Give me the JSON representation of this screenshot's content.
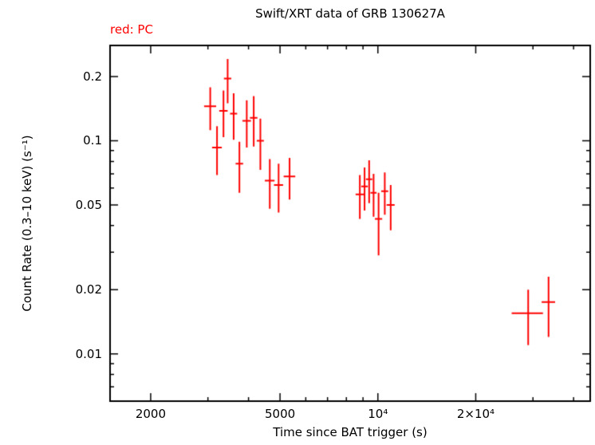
{
  "mode_label": "red: PC",
  "colors": {
    "data": "#ff0000",
    "axis": "#000000",
    "background": "#ffffff"
  },
  "chart_data": {
    "type": "scatter",
    "title": "Swift/XRT data of GRB 130627A",
    "xlabel": "Time since BAT trigger (s)",
    "ylabel": "Count Rate (0.3–10 keV) (s⁻¹)",
    "xscale": "log",
    "yscale": "log",
    "xlim": [
      1500,
      45000
    ],
    "ylim": [
      0.006,
      0.28
    ],
    "grid": false,
    "legend": "none",
    "x_major_ticks": [
      {
        "value": 2000,
        "label": "2000"
      },
      {
        "value": 5000,
        "label": "5000"
      },
      {
        "value": 10000,
        "label": "10⁴"
      },
      {
        "value": 20000,
        "label": "2×10⁴"
      }
    ],
    "x_minor_ticks": [
      3000,
      4000,
      6000,
      7000,
      8000,
      9000,
      30000,
      40000
    ],
    "y_major_ticks": [
      {
        "value": 0.2,
        "label": "0.2"
      },
      {
        "value": 0.1,
        "label": "0.1"
      },
      {
        "value": 0.05,
        "label": "0.05"
      },
      {
        "value": 0.02,
        "label": "0.02"
      },
      {
        "value": 0.01,
        "label": "0.01"
      }
    ],
    "y_minor_ticks": [
      0.007,
      0.008,
      0.009,
      0.03,
      0.04,
      0.06,
      0.07,
      0.08,
      0.09
    ],
    "series": [
      {
        "name": "PC",
        "instrument_mode": "PC",
        "color": "#ff0000",
        "marker": "cross-error-bars",
        "columns": [
          "t",
          "t_err",
          "rate",
          "rate_err"
        ],
        "points": [
          [
            3050,
            130,
            0.145,
            0.033
          ],
          [
            3200,
            110,
            0.093,
            0.024
          ],
          [
            3350,
            100,
            0.138,
            0.034
          ],
          [
            3450,
            90,
            0.196,
            0.046
          ],
          [
            3600,
            90,
            0.134,
            0.033
          ],
          [
            3750,
            100,
            0.078,
            0.021
          ],
          [
            3950,
            120,
            0.124,
            0.031
          ],
          [
            4150,
            110,
            0.128,
            0.034
          ],
          [
            4350,
            110,
            0.1,
            0.027
          ],
          [
            4650,
            160,
            0.065,
            0.017
          ],
          [
            4950,
            160,
            0.062,
            0.016
          ],
          [
            5350,
            220,
            0.068,
            0.015
          ],
          [
            8800,
            260,
            0.056,
            0.013
          ],
          [
            9100,
            210,
            0.061,
            0.014
          ],
          [
            9400,
            210,
            0.066,
            0.015
          ],
          [
            9700,
            210,
            0.057,
            0.013
          ],
          [
            10050,
            260,
            0.043,
            0.014
          ],
          [
            10500,
            260,
            0.058,
            0.013
          ],
          [
            10950,
            310,
            0.05,
            0.012
          ],
          [
            29000,
            3200,
            0.0155,
            0.0045
          ],
          [
            33500,
            1600,
            0.0175,
            0.0055
          ]
        ]
      }
    ]
  }
}
